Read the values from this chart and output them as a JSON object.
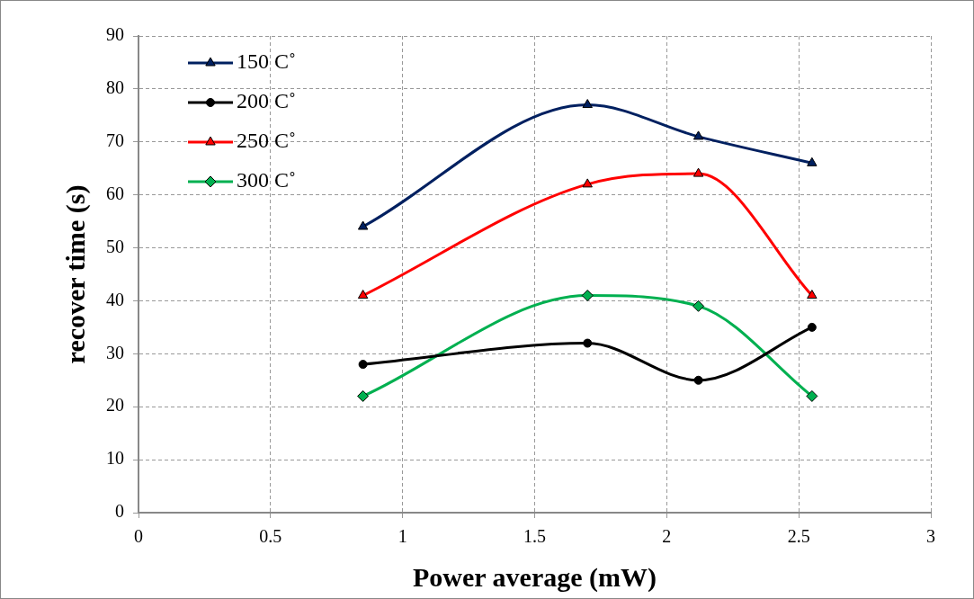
{
  "chart_data": {
    "type": "line",
    "xlabel": "Power average (mW)",
    "ylabel": "recover time (s)",
    "x": [
      0.85,
      1.7,
      2.12,
      2.55
    ],
    "series": [
      {
        "name": "150 C˚",
        "color": "#002060",
        "marker": "triangle",
        "values": [
          54,
          77,
          71,
          66
        ]
      },
      {
        "name": "200 C˚",
        "color": "#000000",
        "marker": "circle",
        "values": [
          28,
          32,
          25,
          35
        ]
      },
      {
        "name": "250 C˚",
        "color": "#ff0000",
        "marker": "triangle",
        "values": [
          41,
          62,
          64,
          41
        ]
      },
      {
        "name": "300 C˚",
        "color": "#00b050",
        "marker": "diamond",
        "values": [
          22,
          41,
          39,
          22
        ]
      }
    ],
    "xlim": [
      0,
      3
    ],
    "xticks": [
      0,
      0.5,
      1,
      1.5,
      2,
      2.5,
      3
    ],
    "ylim": [
      0,
      90
    ],
    "yticks": [
      0,
      10,
      20,
      30,
      40,
      50,
      60,
      70,
      80,
      90
    ],
    "grid": true,
    "legend": "top left"
  }
}
